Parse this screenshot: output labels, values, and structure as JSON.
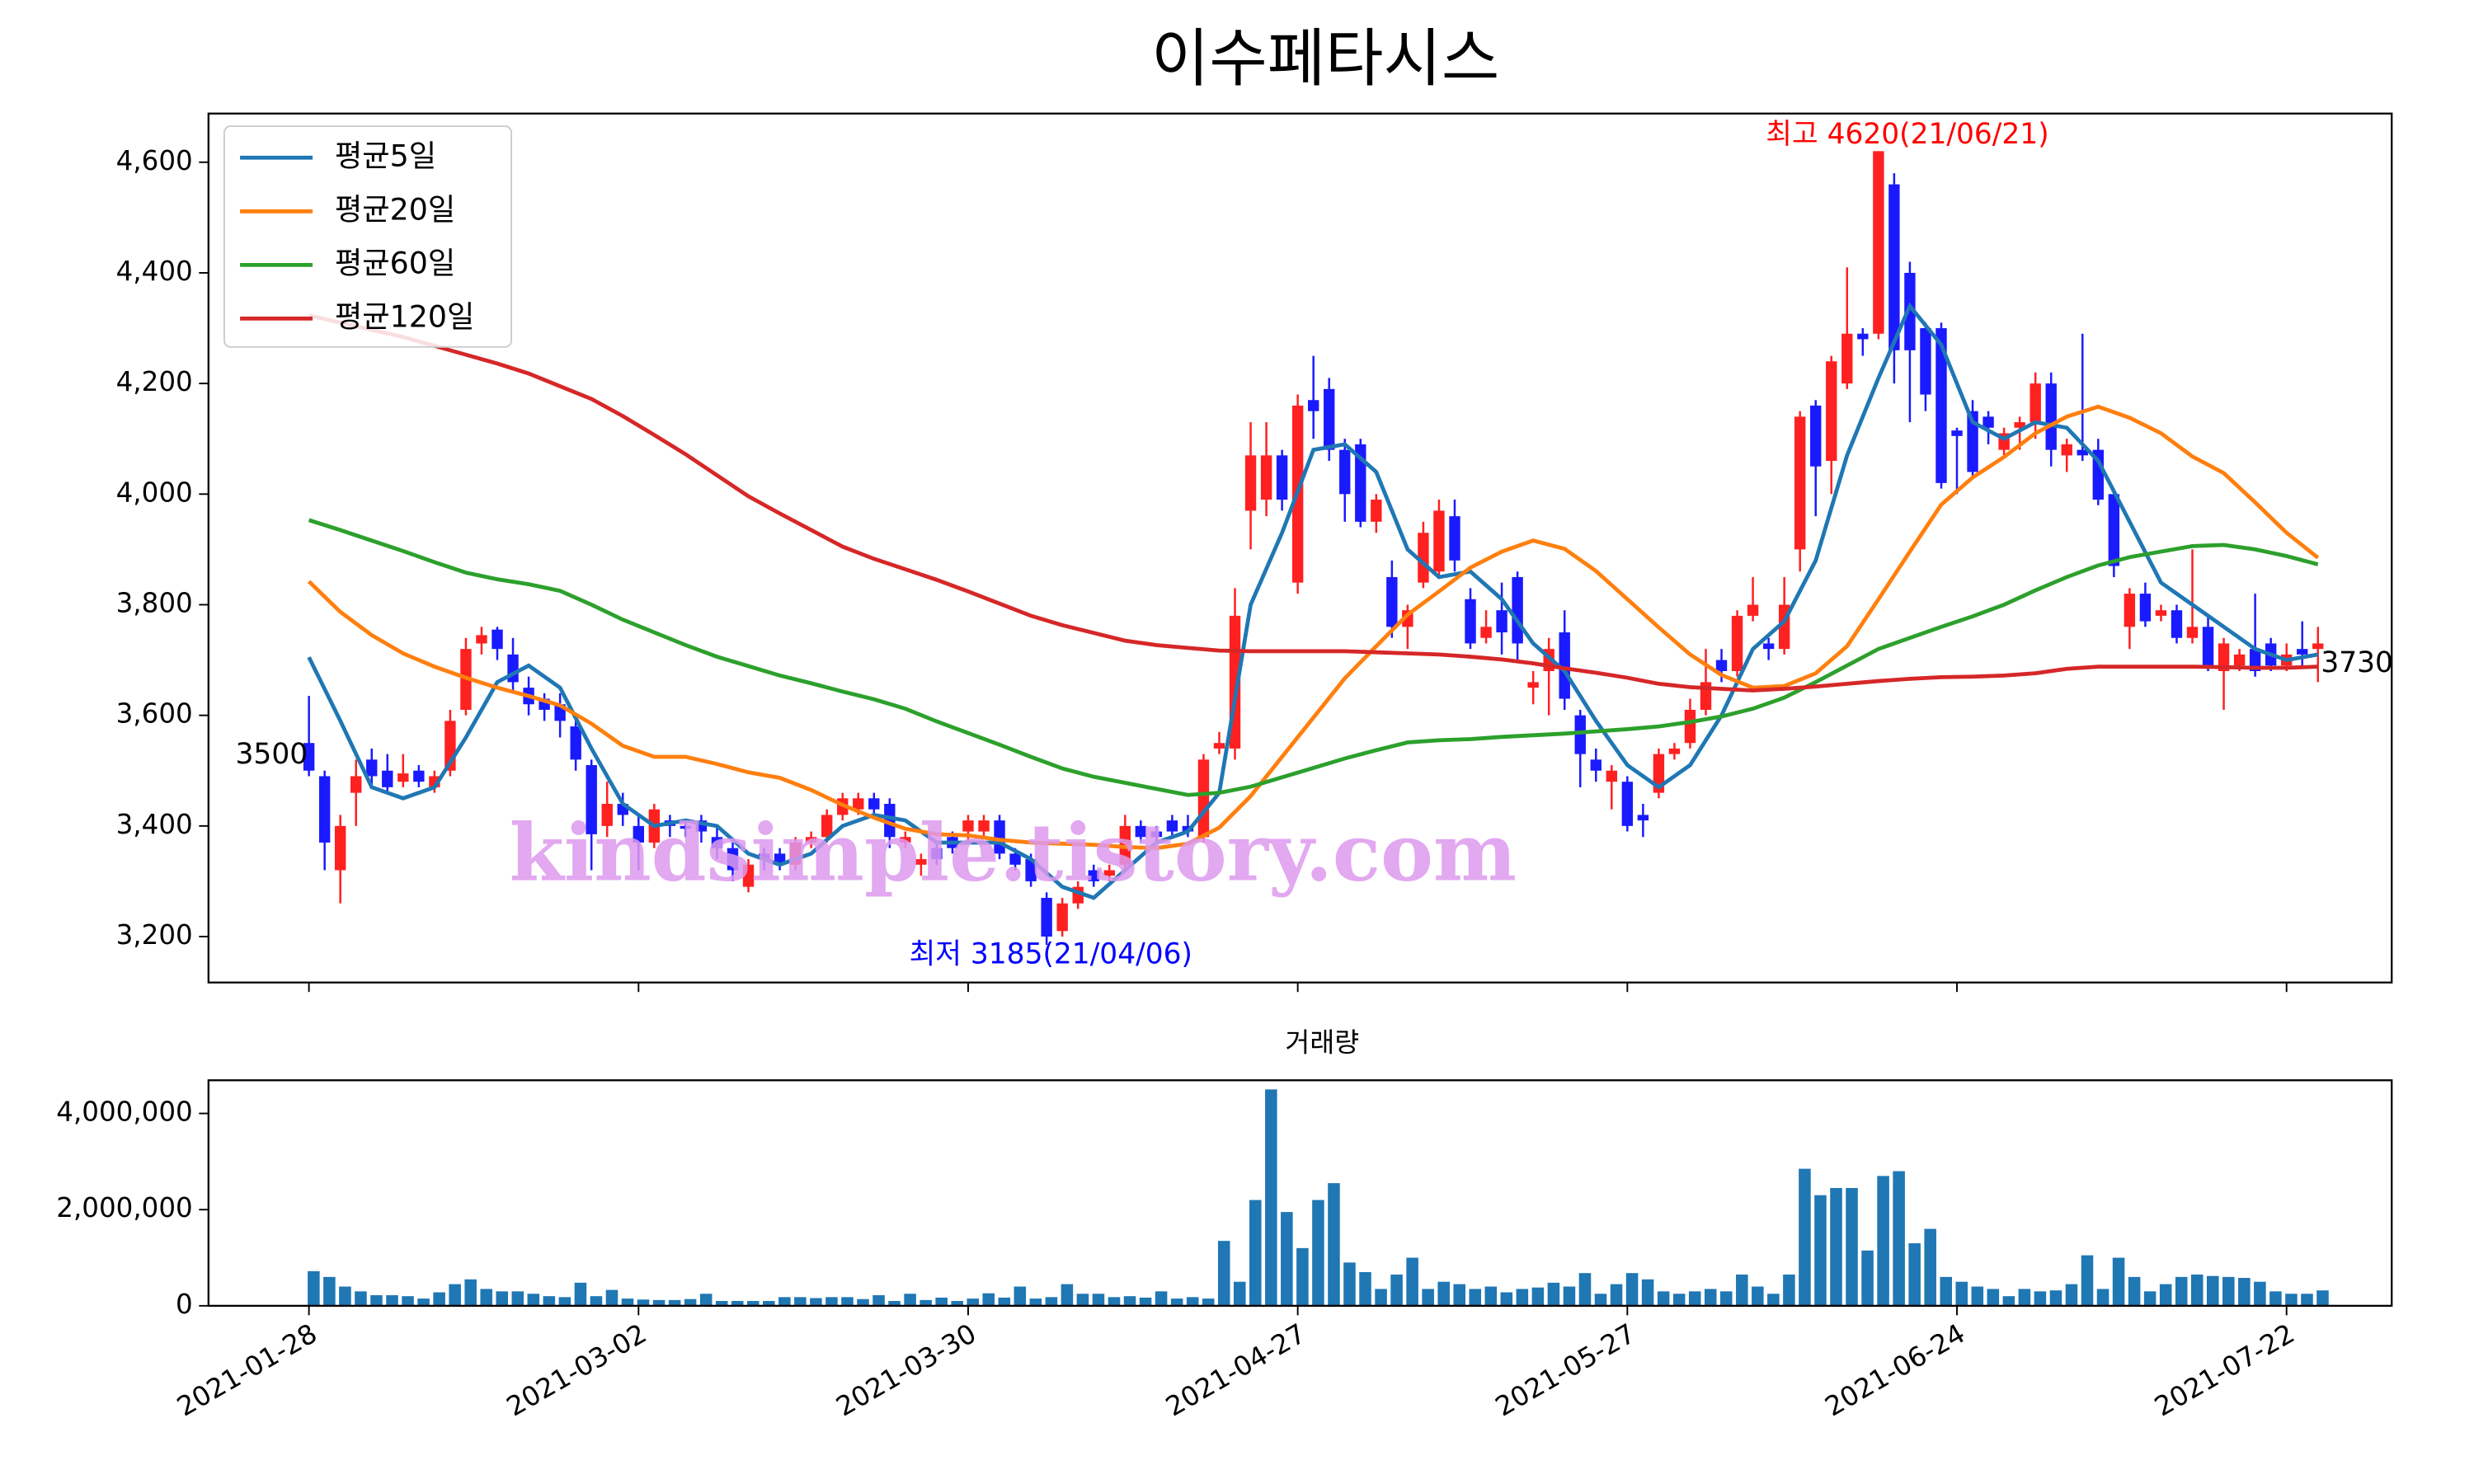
{
  "chart_data": [
    {
      "type": "candlestick",
      "title": "이수페타시스",
      "up_color": "#ff2020",
      "down_color": "#1a1aff",
      "open": [
        3550,
        3490,
        3320,
        3460,
        3520,
        3500,
        3480,
        3500,
        3470,
        3500,
        3610,
        3730,
        3755,
        3710,
        3650,
        3630,
        3620,
        3580,
        3510,
        3400,
        3440,
        3400,
        3370,
        3410,
        3400,
        3410,
        3380,
        3360,
        3290,
        3350,
        3350,
        3330,
        3370,
        3380,
        3420,
        3430,
        3450,
        3440,
        3370,
        3330,
        3360,
        3380,
        3390,
        3390,
        3410,
        3350,
        3340,
        3270,
        3210,
        3260,
        3320,
        3310,
        3330,
        3400,
        3390,
        3410,
        3400,
        3380,
        3540,
        3540,
        3970,
        3990,
        4070,
        3840,
        4170,
        4190,
        4080,
        4090,
        3950,
        3850,
        3760,
        3840,
        3860,
        3960,
        3810,
        3740,
        3790,
        3850,
        3650,
        3680,
        3750,
        3600,
        3520,
        3480,
        3480,
        3420,
        3460,
        3530,
        3550,
        3610,
        3700,
        3680,
        3780,
        3730,
        3720,
        3900,
        4160,
        4060,
        4200,
        4290,
        4290,
        4560,
        4400,
        4300,
        4300,
        4115,
        4150,
        4140,
        4080,
        4120,
        4130,
        4200,
        4070,
        4080,
        4080,
        4000,
        3760,
        3820,
        3780,
        3790,
        3740,
        3760,
        3680,
        3690,
        3720,
        3730,
        3690,
        3720,
        3720
      ],
      "high": [
        3635,
        3500,
        3420,
        3520,
        3540,
        3530,
        3530,
        3510,
        3500,
        3610,
        3740,
        3760,
        3760,
        3740,
        3670,
        3640,
        3640,
        3600,
        3520,
        3480,
        3460,
        3420,
        3440,
        3420,
        3410,
        3420,
        3400,
        3370,
        3340,
        3360,
        3360,
        3380,
        3390,
        3430,
        3460,
        3460,
        3460,
        3450,
        3390,
        3350,
        3370,
        3390,
        3420,
        3420,
        3420,
        3360,
        3350,
        3280,
        3270,
        3300,
        3330,
        3330,
        3420,
        3410,
        3400,
        3420,
        3420,
        3530,
        3570,
        3830,
        4130,
        4130,
        4080,
        4180,
        4250,
        4210,
        4100,
        4100,
        4000,
        3880,
        3800,
        3950,
        3990,
        3990,
        3830,
        3790,
        3840,
        3860,
        3680,
        3740,
        3790,
        3610,
        3540,
        3510,
        3490,
        3440,
        3540,
        3550,
        3630,
        3720,
        3720,
        3790,
        3850,
        3740,
        3850,
        4150,
        4170,
        4250,
        4410,
        4300,
        4620,
        4580,
        4420,
        4310,
        4310,
        4120,
        4170,
        4150,
        4120,
        4140,
        4220,
        4220,
        4100,
        4290,
        4100,
        4010,
        3830,
        3840,
        3800,
        3800,
        3900,
        3780,
        3740,
        3720,
        3820,
        3740,
        3730,
        3770,
        3760
      ],
      "low": [
        3490,
        3320,
        3260,
        3400,
        3470,
        3460,
        3470,
        3470,
        3460,
        3490,
        3600,
        3710,
        3700,
        3640,
        3600,
        3590,
        3560,
        3500,
        3320,
        3380,
        3400,
        3320,
        3360,
        3380,
        3380,
        3370,
        3340,
        3300,
        3280,
        3320,
        3320,
        3320,
        3360,
        3370,
        3410,
        3420,
        3420,
        3360,
        3360,
        3310,
        3330,
        3350,
        3370,
        3380,
        3340,
        3320,
        3290,
        3185,
        3200,
        3250,
        3290,
        3300,
        3320,
        3370,
        3370,
        3380,
        3380,
        3370,
        3530,
        3520,
        3900,
        3960,
        3970,
        3820,
        4100,
        4060,
        3950,
        3940,
        3930,
        3740,
        3720,
        3830,
        3850,
        3860,
        3720,
        3730,
        3710,
        3700,
        3620,
        3600,
        3610,
        3470,
        3480,
        3430,
        3390,
        3380,
        3450,
        3520,
        3540,
        3600,
        3660,
        3670,
        3770,
        3700,
        3710,
        3860,
        3960,
        4000,
        4190,
        4250,
        4280,
        4200,
        4130,
        4150,
        4010,
        4000,
        4030,
        4090,
        4070,
        4080,
        4100,
        4050,
        4040,
        4060,
        3980,
        3850,
        3720,
        3760,
        3770,
        3730,
        3730,
        3680,
        3610,
        3680,
        3670,
        3680,
        3680,
        3690,
        3660
      ],
      "close": [
        3500,
        3370,
        3400,
        3490,
        3490,
        3470,
        3495,
        3480,
        3490,
        3590,
        3720,
        3745,
        3720,
        3660,
        3620,
        3610,
        3590,
        3520,
        3385,
        3440,
        3420,
        3370,
        3430,
        3400,
        3395,
        3390,
        3360,
        3320,
        3330,
        3340,
        3330,
        3370,
        3380,
        3420,
        3450,
        3450,
        3430,
        3380,
        3380,
        3340,
        3340,
        3360,
        3410,
        3410,
        3350,
        3330,
        3300,
        3200,
        3260,
        3290,
        3300,
        3320,
        3400,
        3380,
        3380,
        3390,
        3390,
        3520,
        3550,
        3780,
        4070,
        4070,
        3990,
        4160,
        4150,
        4080,
        4000,
        3950,
        3990,
        3760,
        3790,
        3930,
        3970,
        3880,
        3730,
        3760,
        3750,
        3730,
        3660,
        3720,
        3630,
        3530,
        3500,
        3500,
        3400,
        3410,
        3530,
        3540,
        3610,
        3660,
        3680,
        3780,
        3800,
        3720,
        3800,
        4140,
        4050,
        4240,
        4290,
        4280,
        4620,
        4260,
        4260,
        4180,
        4020,
        4105,
        4040,
        4120,
        4110,
        4130,
        4200,
        4080,
        4090,
        4070,
        3990,
        3870,
        3820,
        3770,
        3790,
        3740,
        3760,
        3690,
        3730,
        3710,
        3680,
        3690,
        3710,
        3710,
        3730
      ],
      "ma_x": [
        0,
        2,
        4,
        6,
        8,
        10,
        12,
        14,
        16,
        18,
        20,
        22,
        24,
        26,
        28,
        30,
        32,
        34,
        36,
        38,
        40,
        42,
        44,
        46,
        48,
        50,
        52,
        54,
        56,
        58,
        60,
        62,
        64,
        66,
        68,
        70,
        72,
        74,
        76,
        78,
        80,
        82,
        84,
        86,
        88,
        90,
        92,
        94,
        96,
        98,
        100,
        102,
        104,
        106,
        108,
        110,
        112,
        114,
        116,
        118,
        120,
        122,
        124,
        126,
        128
      ],
      "series": [
        {
          "name": "평균5일",
          "color": "#1f77b4",
          "values": [
            3705,
            3590,
            3470,
            3450,
            3470,
            3560,
            3660,
            3690,
            3650,
            3540,
            3440,
            3400,
            3410,
            3400,
            3350,
            3330,
            3350,
            3400,
            3420,
            3410,
            3370,
            3370,
            3370,
            3340,
            3290,
            3270,
            3320,
            3370,
            3390,
            3460,
            3800,
            3930,
            4080,
            4090,
            4040,
            3900,
            3850,
            3860,
            3810,
            3730,
            3680,
            3590,
            3510,
            3470,
            3510,
            3600,
            3720,
            3770,
            3880,
            4070,
            4210,
            4340,
            4270,
            4130,
            4100,
            4130,
            4120,
            4060,
            3950,
            3840,
            3800,
            3760,
            3720,
            3700,
            3710
          ]
        },
        {
          "name": "평균20일",
          "color": "#ff7f0e",
          "values": [
            3842,
            3787,
            3745,
            3712,
            3688,
            3668,
            3650,
            3635,
            3618,
            3585,
            3545,
            3525,
            3525,
            3512,
            3497,
            3487,
            3465,
            3438,
            3415,
            3395,
            3385,
            3383,
            3375,
            3370,
            3368,
            3366,
            3362,
            3360,
            3368,
            3397,
            3454,
            3525,
            3596,
            3667,
            3725,
            3782,
            3824,
            3867,
            3896,
            3916,
            3901,
            3861,
            3810,
            3759,
            3710,
            3673,
            3650,
            3653,
            3676,
            3725,
            3810,
            3896,
            3981,
            4030,
            4067,
            4110,
            4140,
            4158,
            4138,
            4110,
            4068,
            4038,
            3985,
            3930,
            3885
          ]
        },
        {
          "name": "평균60일",
          "color": "#2ca02c",
          "values": [
            3953,
            3935,
            3916,
            3897,
            3877,
            3858,
            3846,
            3837,
            3825,
            3800,
            3773,
            3750,
            3727,
            3706,
            3689,
            3672,
            3658,
            3643,
            3629,
            3612,
            3589,
            3568,
            3547,
            3525,
            3504,
            3489,
            3478,
            3467,
            3456,
            3460,
            3471,
            3488,
            3505,
            3522,
            3537,
            3551,
            3555,
            3557,
            3561,
            3564,
            3567,
            3571,
            3575,
            3580,
            3588,
            3598,
            3612,
            3632,
            3660,
            3690,
            3720,
            3740,
            3760,
            3779,
            3800,
            3826,
            3850,
            3871,
            3886,
            3896,
            3906,
            3908,
            3900,
            3888,
            3873
          ]
        },
        {
          "name": "평균120일",
          "color": "#d62728",
          "values": [
            4323,
            4310,
            4297,
            4284,
            4268,
            4252,
            4236,
            4218,
            4195,
            4172,
            4141,
            4107,
            4072,
            4034,
            3996,
            3965,
            3935,
            3905,
            3883,
            3864,
            3845,
            3824,
            3802,
            3780,
            3763,
            3749,
            3735,
            3727,
            3722,
            3717,
            3716,
            3716,
            3716,
            3716,
            3714,
            3712,
            3710,
            3706,
            3701,
            3694,
            3685,
            3677,
            3668,
            3657,
            3651,
            3648,
            3645,
            3648,
            3652,
            3657,
            3662,
            3666,
            3669,
            3670,
            3672,
            3676,
            3684,
            3688,
            3688,
            3688,
            3688,
            3687,
            3686,
            3686,
            3688
          ]
        }
      ],
      "legend": "upper left",
      "annotations": {
        "high": "최고 4620(21/06/21)",
        "low": "최저 3185(21/04/06)",
        "first": "3500",
        "last": "3730",
        "watermark": "kindsimple.tistory.com"
      },
      "xlim": [
        -6.4,
        132.7
      ],
      "ylim": [
        3117,
        4688
      ],
      "yticks": [
        {
          "value": 3200,
          "label": "3,200"
        },
        {
          "value": 3400,
          "label": "3,400"
        },
        {
          "value": 3600,
          "label": "3,600"
        },
        {
          "value": 3800,
          "label": "3,800"
        },
        {
          "value": 4000,
          "label": "4,000"
        },
        {
          "value": 4200,
          "label": "4,200"
        },
        {
          "value": 4400,
          "label": "4,400"
        },
        {
          "value": 4600,
          "label": "4,600"
        }
      ]
    },
    {
      "type": "bar",
      "title": "거래량",
      "color": "#1f77b4",
      "values": [
        720000,
        600000,
        400000,
        300000,
        220000,
        220000,
        200000,
        150000,
        280000,
        450000,
        550000,
        350000,
        300000,
        300000,
        250000,
        200000,
        180000,
        480000,
        200000,
        330000,
        150000,
        130000,
        120000,
        120000,
        140000,
        250000,
        100000,
        100000,
        100000,
        100000,
        180000,
        180000,
        160000,
        180000,
        180000,
        140000,
        220000,
        100000,
        250000,
        120000,
        170000,
        100000,
        150000,
        260000,
        170000,
        400000,
        150000,
        180000,
        450000,
        250000,
        250000,
        180000,
        200000,
        170000,
        300000,
        150000,
        180000,
        150000,
        1350000,
        500000,
        2200000,
        4500000,
        1950000,
        1200000,
        2200000,
        2550000,
        900000,
        700000,
        350000,
        650000,
        1000000,
        350000,
        500000,
        450000,
        350000,
        400000,
        280000,
        350000,
        380000,
        480000,
        400000,
        680000,
        250000,
        450000,
        680000,
        550000,
        300000,
        250000,
        300000,
        350000,
        300000,
        650000,
        400000,
        250000,
        650000,
        2850000,
        2300000,
        2450000,
        2450000,
        1150000,
        2700000,
        2800000,
        1300000,
        1600000,
        600000,
        500000,
        400000,
        350000,
        200000,
        350000,
        300000,
        320000,
        450000,
        1050000,
        350000,
        1000000,
        600000,
        300000,
        450000,
        600000,
        650000,
        620000,
        600000,
        580000,
        500000,
        300000,
        250000,
        250000,
        320000
      ],
      "xlim": [
        -6.4,
        132.7
      ],
      "ylim": [
        0,
        4690000
      ],
      "yticks": [
        0,
        {
          "value": 2000000,
          "label": "2,000,000"
        },
        {
          "value": 4000000,
          "label": "4,000,000"
        }
      ],
      "xticks": [
        {
          "value": 0,
          "label": "2021-01-28"
        },
        {
          "value": 21,
          "label": "2021-03-02"
        },
        {
          "value": 42,
          "label": "2021-03-30"
        },
        {
          "value": 63,
          "label": "2021-04-27"
        },
        {
          "value": 84,
          "label": "2021-05-27"
        },
        {
          "value": 105,
          "label": "2021-06-24"
        },
        {
          "value": 126,
          "label": "2021-07-22"
        }
      ]
    }
  ]
}
